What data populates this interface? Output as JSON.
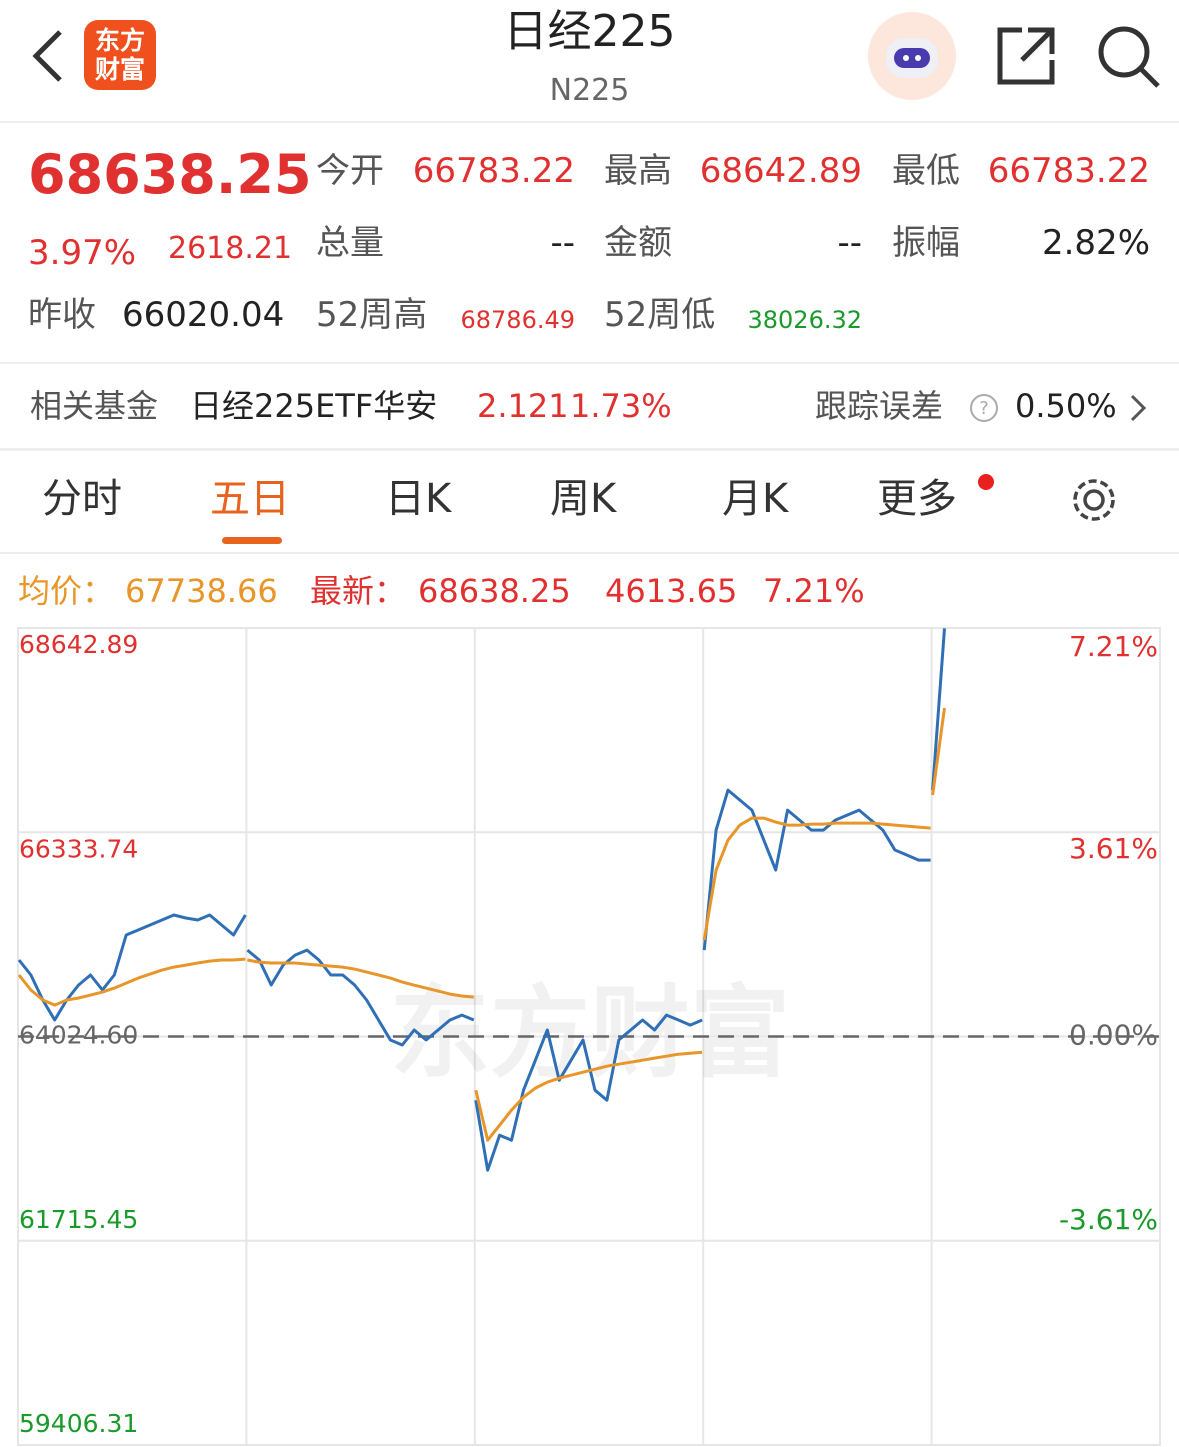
{
  "header": {
    "title": "日经225",
    "subtitle": "N225",
    "logo": [
      "东方",
      "财富"
    ]
  },
  "quote": {
    "price": "68638.25",
    "change_pct": "3.97%",
    "change": "2618.21",
    "fields": [
      {
        "label": "今开",
        "value": "66783.22"
      },
      {
        "label": "最高",
        "value": "68642.89"
      },
      {
        "label": "最低",
        "value": "66783.22"
      },
      {
        "label": "总量",
        "value": "--"
      },
      {
        "label": "金额",
        "value": "--"
      },
      {
        "label": "振幅",
        "value": "2.82%"
      },
      {
        "label": "昨收",
        "value": "66020.04"
      },
      {
        "label": "52周高",
        "value": "68786.49"
      },
      {
        "label": "52周低",
        "value": "38026.32"
      }
    ]
  },
  "fund": {
    "label": "相关基金",
    "name": "日经225ETF华安",
    "price": "2.121",
    "change_pct": "1.73%",
    "tracking_label": "跟踪误差",
    "tracking_value": "0.50%"
  },
  "tabs": [
    "分时",
    "五日",
    "日K",
    "周K",
    "月K",
    "更多"
  ],
  "info": {
    "avg_label": "均价：",
    "avg": "67738.66",
    "last_label": "最新：",
    "last": "68638.25",
    "change": "4613.65",
    "change_pct": "7.21%"
  },
  "chart_data": {
    "type": "line",
    "watermark": "东方财富",
    "ylim": [
      59406.31,
      68642.89
    ],
    "yticks": [
      68642.89,
      66333.74,
      {
        "value": 64024.6,
        "label": "64024.60"
      },
      61715.45,
      59406.31
    ],
    "y2lim": [
      -7.21,
      7.21
    ],
    "y2ticks": [
      {
        "value": 7.21,
        "label": "7.21%"
      },
      {
        "value": 3.61,
        "label": "3.61%"
      },
      {
        "value": 0,
        "label": "0.00%"
      },
      {
        "value": -3.61,
        "label": "-3.61%"
      }
    ],
    "series": [
      {
        "name": "最新",
        "color": "#2f6fb5",
        "values": [
          64889,
          64720,
          64437,
          64211,
          64437,
          64607,
          64720,
          64550,
          64720,
          65172,
          65229,
          65285,
          65342,
          65398,
          65364,
          65342,
          65398,
          65285,
          65172,
          65398,
          null,
          65001,
          64889,
          64607,
          64832,
          64945,
          65001,
          64889,
          64720,
          64720,
          64607,
          64437,
          64211,
          63985,
          63928,
          64098,
          63985,
          64098,
          64211,
          64267,
          64211,
          null,
          63305,
          62513,
          62909,
          62852,
          63418,
          63757,
          64098,
          63531,
          63757,
          63985,
          63418,
          63305,
          63985,
          64098,
          64211,
          64098,
          64267,
          64211,
          64154,
          64211,
          null,
          65001,
          66358,
          66810,
          66697,
          66584,
          66245,
          65906,
          66584,
          66471,
          66358,
          66358,
          66471,
          66528,
          66584,
          66471,
          66358,
          66133,
          66076,
          66019,
          66019,
          null,
          66810,
          68638
        ]
      },
      {
        "name": "均价",
        "color": "#e8952a",
        "values": [
          64720,
          64550,
          64437,
          64380,
          64437,
          64460,
          64493,
          64527,
          64572,
          64628,
          64685,
          64730,
          64775,
          64809,
          64832,
          64855,
          64877,
          64889,
          64889,
          64900,
          null,
          64889,
          64866,
          64855,
          64855,
          64855,
          64843,
          64832,
          64821,
          64809,
          64787,
          64753,
          64720,
          64685,
          64640,
          64605,
          64572,
          64538,
          64504,
          64482,
          64470,
          null,
          63418,
          62852,
          63022,
          63192,
          63338,
          63441,
          63508,
          63553,
          63587,
          63621,
          63655,
          63689,
          63712,
          63734,
          63757,
          63780,
          63802,
          63825,
          63836,
          63847,
          null,
          65114,
          65906,
          66245,
          66415,
          66494,
          66494,
          66449,
          66415,
          66415,
          66426,
          66426,
          66437,
          66437,
          66437,
          66437,
          66426,
          66415,
          66403,
          66392,
          66381,
          null,
          66755,
          67739
        ]
      }
    ]
  }
}
